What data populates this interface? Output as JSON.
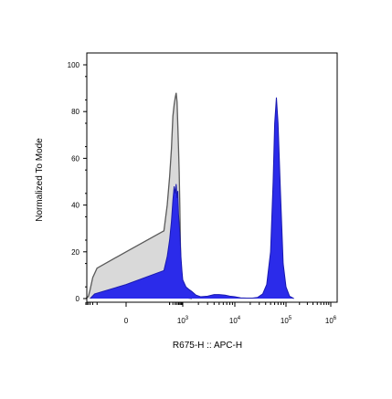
{
  "chart_data": {
    "type": "area",
    "title": "",
    "xlabel": "R675-H :: APC-H",
    "ylabel": "Normalized To Mode",
    "x_scale": "biexponential",
    "ylim": [
      0,
      100
    ],
    "y_ticks": [
      {
        "value": 0,
        "label": "0"
      },
      {
        "value": 20,
        "label": "20"
      },
      {
        "value": 40,
        "label": "40"
      },
      {
        "value": 60,
        "label": "60"
      },
      {
        "value": 80,
        "label": "80"
      },
      {
        "value": 100,
        "label": "100"
      }
    ],
    "x_ticks": [
      {
        "value": 0,
        "base": "0",
        "exp": ""
      },
      {
        "value": 1000,
        "base": "10",
        "exp": "3"
      },
      {
        "value": 10000,
        "base": "10",
        "exp": "4"
      },
      {
        "value": 100000,
        "base": "10",
        "exp": "5"
      },
      {
        "value": 1000000,
        "base": "10",
        "exp": "6"
      }
    ],
    "grid": false,
    "legend": "none",
    "series": [
      {
        "role": "control",
        "fill": "#d9d9d9",
        "stroke": "#5a5a5a",
        "x": [
          -600,
          -400,
          -300,
          -200,
          -100,
          0,
          100,
          150,
          200,
          250,
          300,
          350,
          400,
          450,
          500,
          550,
          600,
          650,
          700,
          750,
          800,
          900,
          1000,
          1150,
          1300,
          1500
        ],
        "y": [
          0,
          1,
          4,
          9,
          13,
          20,
          29,
          40,
          52,
          64,
          78,
          83,
          86,
          88,
          84,
          74,
          64,
          54,
          40,
          24,
          12,
          4,
          1.5,
          0.5,
          0.2,
          0
        ]
      },
      {
        "role": "sample",
        "fill": "#2b2bea",
        "stroke": "#1a1ab0",
        "x": [
          -300,
          -150,
          0,
          100,
          150,
          200,
          250,
          300,
          350,
          400,
          450,
          500,
          550,
          600,
          700,
          800,
          900,
          1000,
          1150,
          1300,
          1500,
          1800,
          2200,
          3000,
          4000,
          5000,
          6500,
          8000,
          10000,
          13000,
          17000,
          22000,
          28000,
          35000,
          42000,
          50000,
          56000,
          60000,
          65000,
          70000,
          78000,
          88000,
          100000,
          120000,
          150000
        ],
        "y": [
          0,
          2,
          6,
          12,
          18,
          25,
          33,
          42,
          48,
          45,
          49,
          43,
          46,
          36,
          28,
          18,
          12,
          8,
          5,
          4,
          3,
          1.5,
          0.8,
          1,
          1.7,
          1.7,
          1.5,
          1.0,
          0.8,
          0.3,
          0.2,
          0.2,
          0.5,
          2,
          6,
          20,
          50,
          75,
          86,
          75,
          45,
          15,
          5,
          1,
          0
        ]
      }
    ]
  }
}
